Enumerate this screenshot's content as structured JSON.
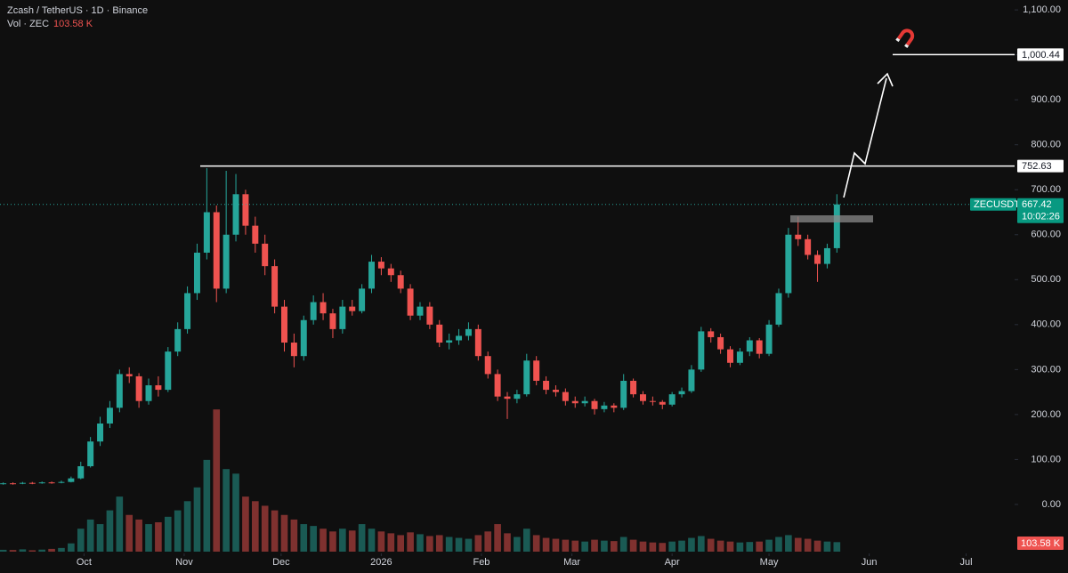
{
  "chart_data": {
    "type": "candlestick",
    "title": "Zcash / TetherUS · 1D · Binance",
    "volume_title": "Vol · ZEC",
    "symbol": "ZECUSDT",
    "countdown": "10:02:26",
    "up_color": "#26a69a",
    "down_color": "#ef5350",
    "grid": false,
    "x": [
      -25,
      -22,
      -19,
      -16,
      -13,
      -10,
      -7,
      -4,
      -1,
      2,
      5,
      8,
      11,
      14,
      17,
      20,
      23,
      26,
      29,
      32,
      35,
      38,
      41,
      44,
      47,
      50,
      53,
      56,
      59,
      62,
      65,
      68,
      71,
      74,
      77,
      80,
      83,
      86,
      89,
      92,
      95,
      98,
      101,
      104,
      107,
      110,
      113,
      116,
      119,
      122,
      125,
      128,
      131,
      134,
      137,
      140,
      143,
      146,
      149,
      152,
      155,
      158,
      161,
      164,
      167,
      170,
      173,
      176,
      179,
      182,
      185,
      188,
      191,
      194,
      197,
      200,
      203,
      206,
      209,
      212,
      215,
      218,
      221,
      224,
      227,
      230,
      233
    ],
    "open": [
      46,
      47,
      46,
      48,
      47,
      49,
      48,
      50,
      58,
      85,
      140,
      180,
      215,
      290,
      285,
      230,
      265,
      255,
      340,
      390,
      470,
      560,
      650,
      480,
      600,
      690,
      620,
      580,
      530,
      440,
      360,
      330,
      410,
      450,
      425,
      390,
      440,
      430,
      480,
      540,
      525,
      510,
      480,
      420,
      440,
      400,
      360,
      365,
      375,
      390,
      330,
      290,
      240,
      235,
      245,
      320,
      275,
      255,
      250,
      230,
      225,
      230,
      212,
      220,
      215,
      275,
      245,
      230,
      228,
      222,
      245,
      252,
      300,
      385,
      372,
      345,
      315,
      340,
      365,
      335,
      400,
      470,
      600,
      590,
      555,
      535,
      570
    ],
    "high": [
      49,
      49,
      50,
      50,
      51,
      51,
      53,
      62,
      95,
      150,
      195,
      230,
      300,
      305,
      292,
      280,
      285,
      350,
      405,
      485,
      580,
      748,
      665,
      742,
      735,
      700,
      640,
      600,
      545,
      455,
      380,
      420,
      465,
      470,
      435,
      455,
      455,
      490,
      555,
      550,
      535,
      520,
      490,
      450,
      450,
      410,
      380,
      390,
      405,
      400,
      340,
      300,
      250,
      255,
      335,
      330,
      285,
      265,
      258,
      240,
      240,
      235,
      228,
      225,
      290,
      280,
      252,
      240,
      232,
      250,
      260,
      310,
      395,
      392,
      380,
      352,
      348,
      372,
      370,
      410,
      480,
      615,
      640,
      600,
      565,
      580,
      690
    ],
    "low": [
      44,
      44,
      45,
      45,
      46,
      46,
      47,
      49,
      56,
      82,
      130,
      170,
      205,
      270,
      215,
      222,
      240,
      250,
      330,
      380,
      455,
      545,
      450,
      470,
      585,
      600,
      560,
      510,
      425,
      340,
      305,
      320,
      400,
      410,
      370,
      380,
      420,
      425,
      470,
      510,
      495,
      470,
      410,
      410,
      390,
      350,
      345,
      355,
      365,
      320,
      280,
      230,
      190,
      225,
      240,
      265,
      245,
      240,
      220,
      215,
      218,
      200,
      205,
      205,
      210,
      238,
      222,
      220,
      212,
      218,
      238,
      248,
      295,
      360,
      335,
      305,
      310,
      330,
      325,
      330,
      395,
      460,
      575,
      545,
      495,
      525,
      560
    ],
    "close": [
      47,
      46,
      48,
      47,
      49,
      48,
      50,
      58,
      85,
      140,
      180,
      215,
      290,
      285,
      230,
      265,
      255,
      340,
      390,
      470,
      560,
      650,
      480,
      600,
      690,
      620,
      580,
      530,
      440,
      360,
      330,
      410,
      450,
      425,
      390,
      440,
      430,
      480,
      540,
      525,
      510,
      480,
      420,
      440,
      400,
      360,
      365,
      375,
      390,
      330,
      290,
      240,
      235,
      245,
      320,
      275,
      255,
      250,
      230,
      225,
      230,
      212,
      220,
      215,
      275,
      245,
      230,
      228,
      222,
      245,
      252,
      300,
      385,
      372,
      345,
      315,
      340,
      365,
      335,
      400,
      470,
      600,
      590,
      555,
      535,
      570,
      667.42
    ],
    "volume": [
      20000,
      18000,
      25000,
      15000,
      22000,
      30000,
      40000,
      90000,
      250000,
      350000,
      300000,
      450000,
      600000,
      400000,
      350000,
      300000,
      320000,
      380000,
      450000,
      550000,
      700000,
      1000000,
      1550000,
      900000,
      850000,
      600000,
      550000,
      500000,
      450000,
      400000,
      350000,
      300000,
      280000,
      250000,
      220000,
      250000,
      230000,
      300000,
      250000,
      220000,
      200000,
      180000,
      210000,
      190000,
      170000,
      180000,
      160000,
      150000,
      140000,
      180000,
      220000,
      300000,
      200000,
      160000,
      250000,
      180000,
      150000,
      140000,
      130000,
      120000,
      110000,
      130000,
      120000,
      115000,
      160000,
      130000,
      110000,
      100000,
      95000,
      110000,
      120000,
      150000,
      170000,
      140000,
      120000,
      110000,
      100000,
      105000,
      110000,
      130000,
      160000,
      180000,
      150000,
      140000,
      120000,
      110000,
      103580
    ],
    "volume_value_labels": [
      null,
      null,
      null,
      null,
      null,
      null,
      null,
      null,
      null,
      null,
      null,
      null,
      null,
      null,
      null,
      null,
      null,
      null,
      null,
      null,
      null,
      null,
      null,
      null,
      null,
      null,
      null,
      null,
      null,
      null,
      null,
      null,
      null,
      null,
      null,
      null,
      null,
      null,
      null,
      null,
      null,
      null,
      null,
      null,
      null,
      null,
      null,
      null,
      null,
      null,
      null,
      null,
      null,
      null,
      null,
      null,
      null,
      null,
      null,
      null,
      null,
      null,
      null,
      null,
      null,
      null,
      null,
      null,
      null,
      null,
      null,
      null,
      null,
      null,
      null,
      null,
      null,
      null,
      null,
      null,
      null,
      null,
      null,
      null,
      null,
      null,
      "103.58 K"
    ],
    "vlim": [
      0,
      1600000
    ],
    "levels": [
      {
        "value": 1000.44,
        "label": "1,000.44"
      },
      752.63
    ],
    "xlim": [
      -26,
      288
    ],
    "xticks": [
      {
        "value": 0,
        "label": "Oct"
      },
      {
        "value": 31,
        "label": "Nov"
      },
      {
        "value": 61,
        "label": "Dec"
      },
      {
        "value": 92,
        "label": "2026"
      },
      {
        "value": 123,
        "label": "Feb"
      },
      {
        "value": 151,
        "label": "Mar"
      },
      {
        "value": 182,
        "label": "Apr"
      },
      {
        "value": 212,
        "label": "May"
      },
      {
        "value": 243,
        "label": "Jun"
      },
      {
        "value": 273,
        "label": "Jul"
      }
    ],
    "ylim": [
      -105,
      1122
    ],
    "yticks": [
      {
        "value": 0,
        "label": "0.00"
      },
      {
        "value": 100,
        "label": "100.00"
      },
      {
        "value": 200,
        "label": "200.00"
      },
      {
        "value": 300,
        "label": "300.00"
      },
      {
        "value": 400,
        "label": "400.00"
      },
      {
        "value": 500,
        "label": "500.00"
      },
      {
        "value": 600,
        "label": "600.00"
      },
      {
        "value": 700,
        "label": "700.00"
      },
      {
        "value": 800,
        "label": "800.00"
      },
      {
        "value": 900,
        "label": "900.00"
      },
      {
        "value": 1000,
        "label": "1,000.00"
      },
      {
        "value": 1100,
        "label": "1,100.00"
      }
    ]
  }
}
